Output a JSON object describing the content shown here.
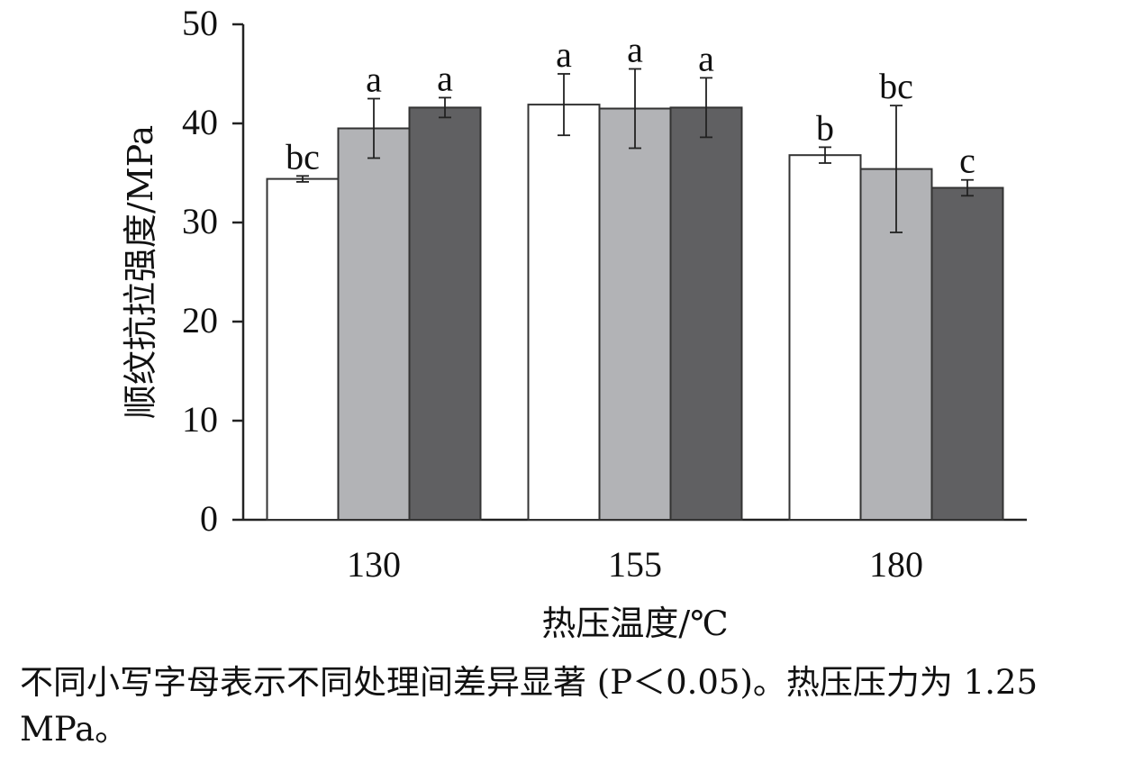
{
  "chart_data": {
    "type": "bar",
    "title": "",
    "xlabel": "热压温度/℃",
    "ylabel": "顺纹抗拉强度/MPa",
    "ylim": [
      0,
      50
    ],
    "yticks": [
      "0",
      "10",
      "20",
      "30",
      "40",
      "50"
    ],
    "categories": [
      "130",
      "155",
      "180"
    ],
    "grid": false,
    "legend": "none",
    "series": [
      {
        "color": "#ffffff",
        "values": [
          34.4,
          41.9,
          36.8
        ],
        "errors": [
          0.3,
          3.1,
          0.8
        ],
        "labels": [
          "bc",
          "a",
          "b"
        ]
      },
      {
        "color": "#b2b3b6",
        "values": [
          39.5,
          41.5,
          35.4
        ],
        "errors": [
          3.0,
          4.0,
          6.4
        ],
        "labels": [
          "a",
          "a",
          "bc"
        ]
      },
      {
        "color": "#606062",
        "values": [
          41.6,
          41.6,
          33.5
        ],
        "errors": [
          1.0,
          3.0,
          0.8
        ],
        "labels": [
          "a",
          "a",
          "c"
        ]
      }
    ]
  },
  "caption": {
    "text": "不同小写字母表示不同处理间差异显著 (P＜0.05)。热压压力为 1.25 MPa。"
  }
}
